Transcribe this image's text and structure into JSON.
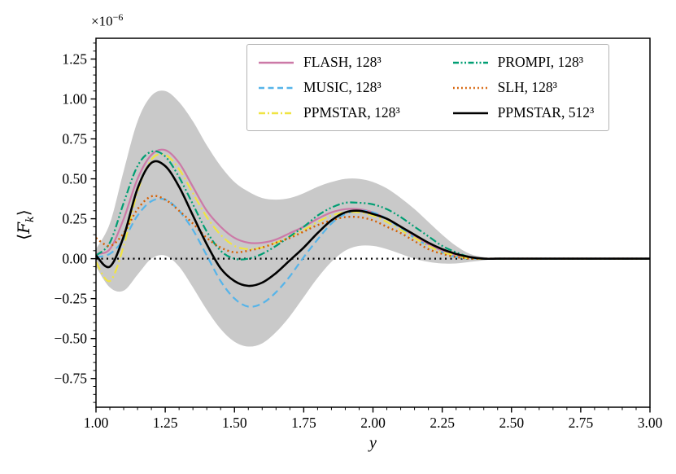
{
  "chart_data": {
    "type": "line",
    "title": "",
    "xlabel": "y",
    "ylabel": {
      "open": "⟨",
      "letter": "F",
      "sub": "k",
      "close": "⟩"
    },
    "offset": {
      "base": "×10",
      "exp": "−6"
    },
    "value_scale_note": "all y values in units of 1e-6",
    "xlim": [
      1.0,
      3.0
    ],
    "ylim": [
      -0.93,
      1.38
    ],
    "grid": false,
    "xticks": {
      "values": [
        1.0,
        1.25,
        1.5,
        1.75,
        2.0,
        2.25,
        2.5,
        2.75,
        3.0
      ],
      "labels": [
        "1.00",
        "1.25",
        "1.50",
        "1.75",
        "2.00",
        "2.25",
        "2.50",
        "2.75",
        "3.00"
      ]
    },
    "yticks": {
      "values": [
        -0.75,
        -0.5,
        -0.25,
        0.0,
        0.25,
        0.5,
        0.75,
        1.0,
        1.25
      ],
      "labels": [
        "−0.75",
        "−0.50",
        "−0.25",
        "0.00",
        "0.25",
        "0.50",
        "0.75",
        "1.00",
        "1.25"
      ]
    },
    "zero_line": {
      "show": true,
      "color": "#000000",
      "style": "dotted"
    },
    "x": [
      1.0,
      1.05,
      1.1,
      1.15,
      1.2,
      1.25,
      1.3,
      1.35,
      1.4,
      1.45,
      1.5,
      1.55,
      1.6,
      1.65,
      1.7,
      1.75,
      1.8,
      1.85,
      1.9,
      1.95,
      2.0,
      2.05,
      2.1,
      2.15,
      2.2,
      2.25,
      2.3,
      2.35,
      2.4,
      2.45,
      2.5,
      2.55,
      2.6,
      2.65,
      2.7,
      2.75,
      2.8,
      2.85,
      2.9,
      2.95,
      3.0
    ],
    "band": {
      "name": "uncertainty-band",
      "color": "#c9c9c9",
      "upper": [
        0.06,
        0.22,
        0.55,
        0.86,
        1.02,
        1.05,
        0.98,
        0.86,
        0.71,
        0.58,
        0.48,
        0.42,
        0.38,
        0.37,
        0.38,
        0.41,
        0.45,
        0.48,
        0.5,
        0.5,
        0.48,
        0.44,
        0.38,
        0.31,
        0.23,
        0.15,
        0.08,
        0.03,
        0.01,
        0,
        0,
        0,
        0,
        0,
        0,
        0,
        0,
        0,
        0,
        0,
        0
      ],
      "lower": [
        -0.05,
        -0.18,
        -0.2,
        -0.1,
        0.0,
        0.02,
        -0.05,
        -0.18,
        -0.32,
        -0.44,
        -0.52,
        -0.55,
        -0.53,
        -0.46,
        -0.36,
        -0.24,
        -0.12,
        -0.02,
        0.05,
        0.08,
        0.08,
        0.06,
        0.03,
        0.0,
        -0.02,
        -0.03,
        -0.03,
        -0.02,
        -0.01,
        0,
        0,
        0,
        0,
        0,
        0,
        0,
        0,
        0,
        0,
        0,
        0
      ]
    },
    "series": [
      {
        "key": "flash-128",
        "name": "FLASH, 128³",
        "color": "#CC79A7",
        "style": "solid",
        "width": 2.2,
        "values": [
          0.03,
          0.06,
          0.25,
          0.5,
          0.65,
          0.68,
          0.6,
          0.45,
          0.3,
          0.2,
          0.13,
          0.1,
          0.1,
          0.12,
          0.16,
          0.2,
          0.25,
          0.29,
          0.31,
          0.31,
          0.29,
          0.25,
          0.2,
          0.14,
          0.09,
          0.05,
          0.02,
          0.01,
          0.0,
          0,
          0,
          0,
          0,
          0,
          0,
          0,
          0,
          0,
          0,
          0,
          0
        ]
      },
      {
        "key": "music-128",
        "name": "MUSIC, 128³",
        "color": "#56B4E9",
        "style": "dashed",
        "width": 2.2,
        "values": [
          0.01,
          0.03,
          0.12,
          0.27,
          0.36,
          0.37,
          0.3,
          0.18,
          0.02,
          -0.14,
          -0.25,
          -0.3,
          -0.28,
          -0.21,
          -0.11,
          0.01,
          0.12,
          0.22,
          0.28,
          0.3,
          0.29,
          0.25,
          0.19,
          0.13,
          0.08,
          0.04,
          0.01,
          0.0,
          0.0,
          0,
          0,
          0,
          0,
          0,
          0,
          0,
          0,
          0,
          0,
          0,
          0
        ]
      },
      {
        "key": "ppmstar-128",
        "name": "PPMSTAR, 128³",
        "color": "#F0E442",
        "style": "dashdot",
        "width": 2.2,
        "values": [
          -0.02,
          -0.14,
          0.08,
          0.42,
          0.62,
          0.65,
          0.56,
          0.41,
          0.26,
          0.15,
          0.08,
          0.06,
          0.07,
          0.1,
          0.14,
          0.18,
          0.23,
          0.27,
          0.29,
          0.29,
          0.27,
          0.23,
          0.18,
          0.13,
          0.08,
          0.04,
          0.02,
          0.0,
          0.0,
          0,
          0,
          0,
          0,
          0,
          0,
          0,
          0,
          0,
          0,
          0,
          0
        ]
      },
      {
        "key": "prompi-128",
        "name": "PROMPI, 128³",
        "color": "#009E73",
        "style": "dashdotdot",
        "width": 2.2,
        "values": [
          0.02,
          0.1,
          0.35,
          0.58,
          0.67,
          0.64,
          0.51,
          0.34,
          0.17,
          0.05,
          0.0,
          0.0,
          0.03,
          0.08,
          0.14,
          0.2,
          0.27,
          0.32,
          0.35,
          0.35,
          0.34,
          0.31,
          0.26,
          0.2,
          0.14,
          0.08,
          0.04,
          0.01,
          0.0,
          0,
          0,
          0,
          0,
          0,
          0,
          0,
          0,
          0,
          0,
          0,
          0
        ]
      },
      {
        "key": "slh-128",
        "name": "SLH, 128³",
        "color": "#D55E00",
        "style": "dotted",
        "width": 2.4,
        "values": [
          0.13,
          0.08,
          0.16,
          0.31,
          0.39,
          0.37,
          0.3,
          0.22,
          0.13,
          0.07,
          0.04,
          0.05,
          0.07,
          0.1,
          0.13,
          0.17,
          0.21,
          0.24,
          0.26,
          0.26,
          0.24,
          0.2,
          0.16,
          0.11,
          0.06,
          0.03,
          0.01,
          0.0,
          0.0,
          0,
          0,
          0,
          0,
          0,
          0,
          0,
          0,
          0,
          0,
          0,
          0
        ]
      },
      {
        "key": "ppmstar-512",
        "name": "PPMSTAR, 512³",
        "color": "#000000",
        "style": "solid",
        "width": 2.6,
        "values": [
          0.02,
          -0.05,
          0.14,
          0.44,
          0.6,
          0.58,
          0.45,
          0.27,
          0.09,
          -0.06,
          -0.14,
          -0.17,
          -0.15,
          -0.09,
          -0.01,
          0.07,
          0.16,
          0.24,
          0.29,
          0.3,
          0.28,
          0.25,
          0.2,
          0.15,
          0.1,
          0.06,
          0.03,
          0.01,
          0.0,
          0,
          0,
          0,
          0,
          0,
          0,
          0,
          0,
          0,
          0,
          0,
          0
        ]
      }
    ],
    "legend": {
      "columns": 2,
      "order": "column-major",
      "frame": true,
      "location": "upper right"
    }
  }
}
